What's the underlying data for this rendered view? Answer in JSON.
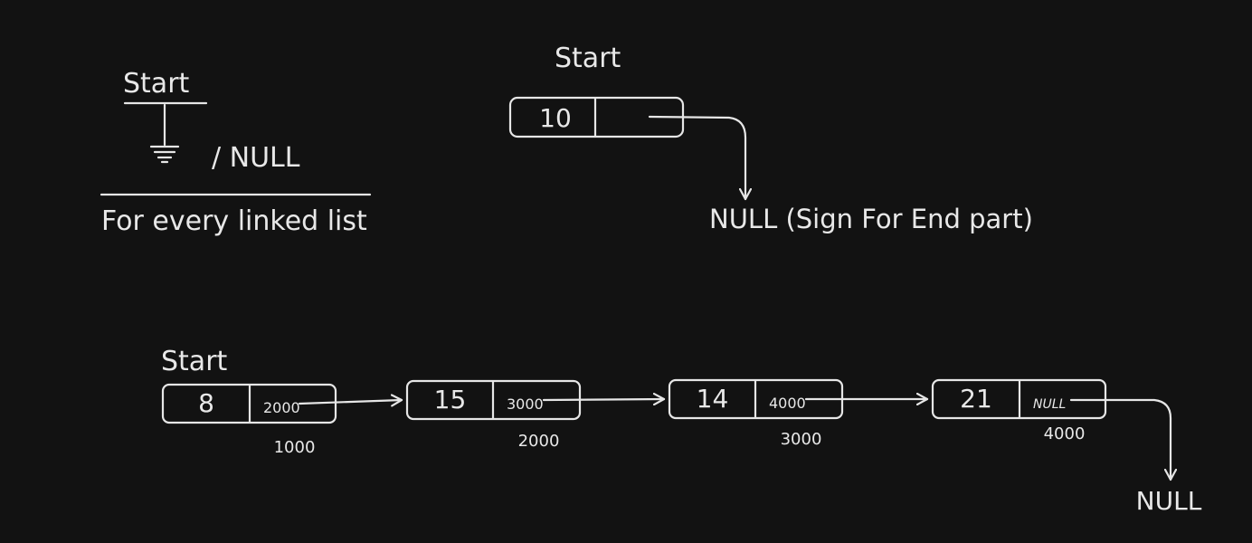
{
  "legend": {
    "start_label": "Start",
    "null_label": "/ NULL",
    "caption": "For every linked list"
  },
  "single_node": {
    "start_label": "Start",
    "value": "10",
    "end_label": "NULL (Sign For End part)"
  },
  "linked_list": {
    "start_label": "Start",
    "nodes": [
      {
        "value": "8",
        "next": "2000",
        "address": "1000"
      },
      {
        "value": "15",
        "next": "3000",
        "address": "2000"
      },
      {
        "value": "14",
        "next": "4000",
        "address": "3000"
      },
      {
        "value": "21",
        "next": "NULL",
        "address": "4000"
      }
    ],
    "end_label": "NULL"
  },
  "colors": {
    "background": "#121212",
    "stroke": "#e6e6e6"
  }
}
